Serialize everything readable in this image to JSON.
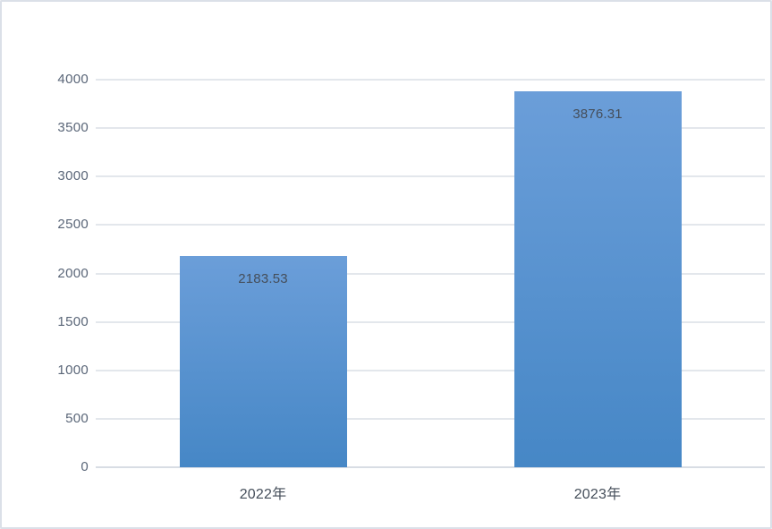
{
  "chart_data": {
    "type": "bar",
    "title": "",
    "xlabel": "",
    "ylabel": "",
    "categories": [
      "2022年",
      "2023年"
    ],
    "values": [
      2183.53,
      3876.31
    ],
    "data_labels": [
      "2183.53",
      "3876.31"
    ],
    "data_label_position": "inside-end",
    "yticks": [
      0,
      500,
      1000,
      1500,
      2000,
      2500,
      3000,
      3500,
      4000
    ],
    "ytick_labels": [
      "0",
      "500",
      "1000",
      "1500",
      "2000",
      "2500",
      "3000",
      "3500",
      "4000"
    ],
    "ylim": [
      0,
      4000
    ],
    "grid": true,
    "legend": false,
    "colors": {
      "bar_gradient_top": "#6b9ed9",
      "bar_gradient_bottom": "#4687c6",
      "gridline": "#e3e7ec",
      "axis_baseline": "#d8dde4",
      "tick_label": "#5a6678",
      "data_label": "#454e5a",
      "category_label": "#454e5a",
      "chart_border": "#dbe0e8",
      "background": "#ffffff"
    }
  }
}
